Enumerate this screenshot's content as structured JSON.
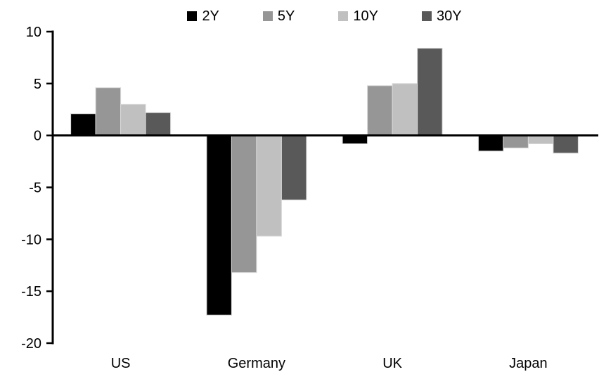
{
  "chart_data": {
    "type": "bar",
    "title": "",
    "xlabel": "",
    "ylabel": "",
    "categories": [
      "US",
      "Germany",
      "UK",
      "Japan"
    ],
    "series": [
      {
        "name": "2Y",
        "color": "#000000",
        "values": [
          2.1,
          -17.3,
          -0.8,
          -1.5
        ]
      },
      {
        "name": "5Y",
        "color": "#969696",
        "values": [
          4.6,
          -13.2,
          4.8,
          -1.2
        ]
      },
      {
        "name": "10Y",
        "color": "#c0c0c0",
        "values": [
          3.0,
          -9.7,
          5.0,
          -0.8
        ]
      },
      {
        "name": "30Y",
        "color": "#595959",
        "values": [
          2.2,
          -6.2,
          8.4,
          -1.7
        ]
      }
    ],
    "ylim": [
      -20,
      10
    ],
    "yticks": [
      10,
      5,
      0,
      -5,
      -10,
      -15,
      -20
    ],
    "legend_position": "top",
    "grid": false,
    "axis_color": "#000000",
    "background": "#ffffff",
    "bar_border_color": "#d9d9d9"
  }
}
